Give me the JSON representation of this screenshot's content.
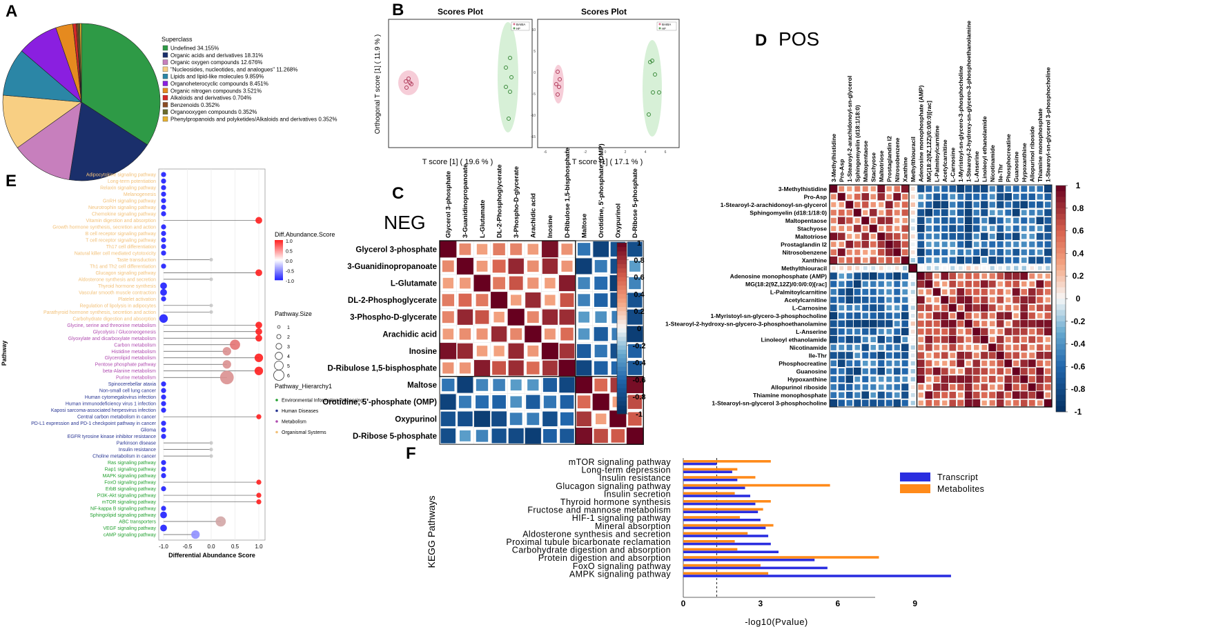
{
  "colors": {
    "pie": [
      "#2e9a46",
      "#1a2f6b",
      "#c77fbd",
      "#f8cf83",
      "#2b86a6",
      "#8a1fe0",
      "#e58a1f",
      "#d62728",
      "#8b4b23",
      "#6b6b2c",
      "#e8b230"
    ],
    "hier": {
      "Environmental Information Processing": "#22a02f",
      "Human Diseases": "#283593",
      "Metabolism": "#b04cb0",
      "Organismal Systems": "#f2c078"
    },
    "blue": "#2a2ee0",
    "orange": "#ff8a1a"
  },
  "labels": {
    "A": "A",
    "B": "B",
    "C": "C",
    "D": "D",
    "E": "E",
    "F": "F",
    "neg": "NEG",
    "pos": "POS"
  },
  "pie": {
    "legend_title": "Superclass",
    "items": [
      {
        "label": "Undefined 34.155%",
        "value": 34.155
      },
      {
        "label": "Organic acids and derivatives 18.31%",
        "value": 18.31
      },
      {
        "label": "Organic oxygen compounds 12.676%",
        "value": 12.676
      },
      {
        "label": "\"Nucleosides, nucleotides, and analogues\" 11.268%",
        "value": 11.268
      },
      {
        "label": "Lipids and lipid-like molecules 9.859%",
        "value": 9.859
      },
      {
        "label": "Organoheterocyclic compounds 8.451%",
        "value": 8.451
      },
      {
        "label": "Organic nitrogen compounds 3.521%",
        "value": 3.521
      },
      {
        "label": "Alkaloids and derivatives 0.704%",
        "value": 0.704
      },
      {
        "label": "Benzenoids 0.352%",
        "value": 0.352
      },
      {
        "label": "Organooxygen compounds 0.352%",
        "value": 0.352
      },
      {
        "label": "Phenylpropanoids and polyketides/Alkaloids and derivatives 0.352%",
        "value": 0.352
      }
    ]
  },
  "scores": {
    "left": {
      "title": "Scores Plot",
      "xlabel": "T score [1] ( 19.6 % )",
      "ylabel": "Orthogonal T score [1] ( 11.9 % )",
      "legend": [
        "BAIBA",
        "HF"
      ]
    },
    "right": {
      "title": "Scores Plot",
      "xlabel": "T score [1] ( 17.1 % )",
      "legend": [
        "BAIBA",
        "HF"
      ],
      "yticks": [
        "10",
        "5",
        "0",
        "-5",
        "-10",
        "-15"
      ],
      "xticks": [
        "-6",
        "-4",
        "-2",
        "0",
        "2",
        "4",
        "6"
      ]
    }
  },
  "neg": {
    "labels": [
      "Glycerol 3-phosphate",
      "3-Guanidinopropanoate",
      "L-Glutamate",
      "DL-2-Phosphoglycerate",
      "3-Phospho-D-glycerate",
      "Arachidic acid",
      "Inosine",
      "D-Ribulose 1,5-bisphosphate",
      "Maltose",
      "Orotidine, 5'-phosphate (OMP)",
      "Oxypurinol",
      "D-Ribose 5-phosphate"
    ],
    "group_a": 8,
    "scale": [
      "1",
      "0.8",
      "0.6",
      "0.4",
      "0.2",
      "0",
      "-0.2",
      "-0.4",
      "-0.6",
      "-0.8",
      "-1"
    ]
  },
  "pos": {
    "labels": [
      "3-Methylhistidine",
      "Pro-Asp",
      "1-Stearoyl-2-arachidonoyl-sn-glycerol",
      "Sphingomyelin (d18:1/18:0)",
      "Maltopentaose",
      "Stachyose",
      "Maltotriose",
      "Prostaglandin I2",
      "Nitrosobenzene",
      "Xanthine",
      "Methylthiouracil",
      "Adenosine monophosphate (AMP)",
      "MG(18:2(9Z,12Z)/0:0/0:0)[rac]",
      "L-Palmitoylcarnitine",
      "Acetylcarnitine",
      "L-Carnosine",
      "1-Myristoyl-sn-glycero-3-phosphocholine",
      "1-Stearoyl-2-hydroxy-sn-glycero-3-phosphoethanolamine",
      "L-Anserine",
      "Linoleoyl ethanolamide",
      "Nicotinamide",
      "Ile-Thr",
      "Phosphocreatine",
      "Guanosine",
      "Hypoxanthine",
      "Allopurinol riboside",
      "Thiamine monophosphate",
      "1-Stearoyl-sn-glycerol 3-phosphocholine"
    ],
    "group_a": 10,
    "scale": [
      "1",
      "0.8",
      "0.6",
      "0.4",
      "0.2",
      "0",
      "-0.2",
      "-0.4",
      "-0.6",
      "-0.8",
      "-1"
    ]
  },
  "lollipop": {
    "ylabel": "Pathway",
    "xlabel": "Differential Abundance Score",
    "xticks": [
      "-1.0",
      "-0.5",
      "0.0",
      "0.5",
      "1.0"
    ],
    "legend_score_title": "Diff.Abundance.Score",
    "legend_score_ticks": [
      "1.0",
      "0.5",
      "0.0",
      "-0.5",
      "-1.0"
    ],
    "legend_size_title": "Pathway.Size",
    "legend_size_items": [
      "1",
      "2",
      "3",
      "4",
      "5",
      "6"
    ],
    "legend_hier_title": "Pathway_Hierarchy1",
    "legend_hier_items": [
      "Environmental Information Processing",
      "Human Diseases",
      "Metabolism",
      "Organismal Systems"
    ],
    "pathways": [
      {
        "name": "Adipocytokine signaling pathway",
        "group": "Organismal Systems",
        "score": -1,
        "size": 1
      },
      {
        "name": "Long-term potentiation",
        "group": "Organismal Systems",
        "score": -1,
        "size": 1
      },
      {
        "name": "Relaxin signaling pathway",
        "group": "Organismal Systems",
        "score": -1,
        "size": 1
      },
      {
        "name": "Melanogenesis",
        "group": "Organismal Systems",
        "score": -1,
        "size": 1
      },
      {
        "name": "GnRH signaling pathway",
        "group": "Organismal Systems",
        "score": -1,
        "size": 1
      },
      {
        "name": "Neurotrophin signaling pathway",
        "group": "Organismal Systems",
        "score": -1,
        "size": 1
      },
      {
        "name": "Chemokine signaling pathway",
        "group": "Organismal Systems",
        "score": -1,
        "size": 1
      },
      {
        "name": "Vitamin digestion and absorption",
        "group": "Organismal Systems",
        "score": 1,
        "size": 2
      },
      {
        "name": "Growth hormone synthesis, secretion and action",
        "group": "Organismal Systems",
        "score": -1,
        "size": 1
      },
      {
        "name": "B cell receptor signaling pathway",
        "group": "Organismal Systems",
        "score": -1,
        "size": 1
      },
      {
        "name": "T cell receptor signaling pathway",
        "group": "Organismal Systems",
        "score": -1,
        "size": 1
      },
      {
        "name": "Th17 cell differentiation",
        "group": "Organismal Systems",
        "score": -1,
        "size": 1
      },
      {
        "name": "Natural killer cell mediated cytotoxicity",
        "group": "Organismal Systems",
        "score": -1,
        "size": 1
      },
      {
        "name": "Taste transduction",
        "group": "Organismal Systems",
        "score": 0,
        "size": 1
      },
      {
        "name": "Th1 and Th2 cell differentiation",
        "group": "Organismal Systems",
        "score": -1,
        "size": 1
      },
      {
        "name": "Glucagon signaling pathway",
        "group": "Organismal Systems",
        "score": 1,
        "size": 2
      },
      {
        "name": "Aldosterone synthesis and secretion",
        "group": "Organismal Systems",
        "score": 0,
        "size": 1
      },
      {
        "name": "Thyroid hormone synthesis",
        "group": "Organismal Systems",
        "score": -1,
        "size": 2
      },
      {
        "name": "Vascular smooth muscle contraction",
        "group": "Organismal Systems",
        "score": -1,
        "size": 2
      },
      {
        "name": "Platelet activation",
        "group": "Organismal Systems",
        "score": -1,
        "size": 1
      },
      {
        "name": "Regulation of lipolysis in adipocytes",
        "group": "Organismal Systems",
        "score": 0,
        "size": 1
      },
      {
        "name": "Parathyroid hormone synthesis, secretion and action",
        "group": "Organismal Systems",
        "score": 0,
        "size": 1
      },
      {
        "name": "Carbohydrate digestion and absorption",
        "group": "Organismal Systems",
        "score": -1,
        "size": 3
      },
      {
        "name": "Glycine, serine and threonine metabolism",
        "group": "Metabolism",
        "score": 1,
        "size": 2
      },
      {
        "name": "Glycolysis / Gluconeogenesis",
        "group": "Metabolism",
        "score": 1,
        "size": 2
      },
      {
        "name": "Glyoxylate and dicarboxylate metabolism",
        "group": "Metabolism",
        "score": 1,
        "size": 2
      },
      {
        "name": "Carbon metabolism",
        "group": "Metabolism",
        "score": 0.5,
        "size": 4
      },
      {
        "name": "Histidine metabolism",
        "group": "Metabolism",
        "score": 0.33,
        "size": 3
      },
      {
        "name": "Glycerolipid metabolism",
        "group": "Metabolism",
        "score": 1,
        "size": 3
      },
      {
        "name": "Pentose phosphate pathway",
        "group": "Metabolism",
        "score": 0.33,
        "size": 3
      },
      {
        "name": "beta-Alanine metabolism",
        "group": "Metabolism",
        "score": 1,
        "size": 3
      },
      {
        "name": "Purine metabolism",
        "group": "Metabolism",
        "score": 0.33,
        "size": 6
      },
      {
        "name": "Spinocerebellar ataxia",
        "group": "Human Diseases",
        "score": -1,
        "size": 1
      },
      {
        "name": "Non-small cell lung cancer",
        "group": "Human Diseases",
        "score": -1,
        "size": 1
      },
      {
        "name": "Human cytomegalovirus infection",
        "group": "Human Diseases",
        "score": -1,
        "size": 1
      },
      {
        "name": "Human immunodeficiency virus 1 infection",
        "group": "Human Diseases",
        "score": -1,
        "size": 1
      },
      {
        "name": "Kaposi sarcoma-associated herpesvirus infection",
        "group": "Human Diseases",
        "score": -1,
        "size": 1
      },
      {
        "name": "Central carbon metabolism in cancer",
        "group": "Human Diseases",
        "score": 1,
        "size": 1
      },
      {
        "name": "PD-L1 expression and PD-1 checkpoint pathway in cancer",
        "group": "Human Diseases",
        "score": -1,
        "size": 1
      },
      {
        "name": "Glioma",
        "group": "Human Diseases",
        "score": -1,
        "size": 1
      },
      {
        "name": "EGFR tyrosine kinase inhibitor resistance",
        "group": "Human Diseases",
        "score": -1,
        "size": 1
      },
      {
        "name": "Parkinson disease",
        "group": "Human Diseases",
        "score": 0,
        "size": 1
      },
      {
        "name": "Insulin resistance",
        "group": "Human Diseases",
        "score": 0,
        "size": 1
      },
      {
        "name": "Choline metabolism in cancer",
        "group": "Human Diseases",
        "score": 0,
        "size": 1
      },
      {
        "name": "Ras signaling pathway",
        "group": "Environmental Information Processing",
        "score": -1,
        "size": 1
      },
      {
        "name": "Rap1 signaling pathway",
        "group": "Environmental Information Processing",
        "score": -1,
        "size": 1
      },
      {
        "name": "MAPK signaling pathway",
        "group": "Environmental Information Processing",
        "score": -1,
        "size": 1
      },
      {
        "name": "FoxO signaling pathway",
        "group": "Environmental Information Processing",
        "score": 1,
        "size": 1
      },
      {
        "name": "ErbB signaling pathway",
        "group": "Environmental Information Processing",
        "score": -1,
        "size": 1
      },
      {
        "name": "PI3K-Akt signaling pathway",
        "group": "Environmental Information Processing",
        "score": 1,
        "size": 1
      },
      {
        "name": "mTOR signaling pathway",
        "group": "Environmental Information Processing",
        "score": 1,
        "size": 1
      },
      {
        "name": "NF-kappa B signaling pathway",
        "group": "Environmental Information Processing",
        "score": -1,
        "size": 1
      },
      {
        "name": "Sphingolipid signaling pathway",
        "group": "Environmental Information Processing",
        "score": -1,
        "size": 2
      },
      {
        "name": "ABC transporters",
        "group": "Environmental Information Processing",
        "score": 0.2,
        "size": 4
      },
      {
        "name": "VEGF signaling pathway",
        "group": "Environmental Information Processing",
        "score": -1,
        "size": 2
      },
      {
        "name": "cAMP signaling pathway",
        "group": "Environmental Information Processing",
        "score": -0.33,
        "size": 3
      }
    ]
  },
  "kegg": {
    "ylabel": "KEGG Pathways",
    "xlabel": "-log10(Pvalue)",
    "xticks": [
      "0",
      "3",
      "6",
      "9"
    ],
    "legend": [
      "Transcript",
      "Metabolites"
    ],
    "pathways": [
      {
        "name": "mTOR signaling pathway",
        "transcript": 1.3,
        "metabolites": 3.4
      },
      {
        "name": "Long-term depression",
        "transcript": 1.9,
        "metabolites": 2.1
      },
      {
        "name": "Insulin resistance",
        "transcript": 2.1,
        "metabolites": 2.8
      },
      {
        "name": "Glucagon signaling pathway",
        "transcript": 2.4,
        "metabolites": 5.7
      },
      {
        "name": "Insulin secretion",
        "transcript": 2.6,
        "metabolites": 2.0
      },
      {
        "name": "Thyroid hormone synthesis",
        "transcript": 2.8,
        "metabolites": 3.4
      },
      {
        "name": "Fructose and mannose metabolism",
        "transcript": 2.9,
        "metabolites": 3.1
      },
      {
        "name": "HIF-1 signaling pathway",
        "transcript": 3.0,
        "metabolites": 2.2
      },
      {
        "name": "Mineral absorption",
        "transcript": 3.2,
        "metabolites": 3.5
      },
      {
        "name": "Aldosterone synthesis and secretion",
        "transcript": 3.3,
        "metabolites": 2.5
      },
      {
        "name": "Proximal tubule bicarbonate reclamation",
        "transcript": 3.4,
        "metabolites": 2.0
      },
      {
        "name": "Carbohydrate digestion and absorption",
        "transcript": 3.7,
        "metabolites": 2.1
      },
      {
        "name": "Protein digestion and absorption",
        "transcript": 5.1,
        "metabolites": 7.6
      },
      {
        "name": "FoxO signaling pathway",
        "transcript": 5.6,
        "metabolites": 3.0
      },
      {
        "name": "AMPK signaling pathway",
        "transcript": 10.4,
        "metabolites": 3.3
      }
    ]
  }
}
